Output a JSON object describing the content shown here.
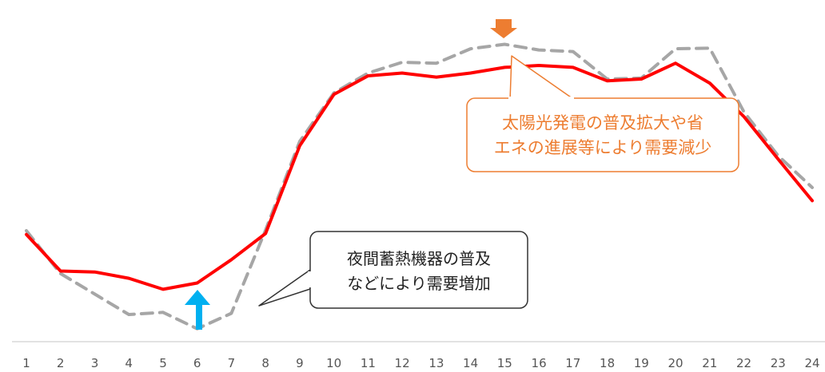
{
  "chart_data": {
    "type": "line",
    "title": "",
    "xlabel": "",
    "ylabel": "",
    "x": [
      1,
      2,
      3,
      4,
      5,
      6,
      7,
      8,
      9,
      10,
      11,
      12,
      13,
      14,
      15,
      16,
      17,
      18,
      19,
      20,
      21,
      22,
      23,
      24
    ],
    "ylim": [
      0,
      100
    ],
    "grid": false,
    "legend": "none",
    "series": [
      {
        "style": "solid",
        "color": "#ff0000",
        "values": [
          30.2,
          18.6,
          18.3,
          16.3,
          12.8,
          14.8,
          22.2,
          30.5,
          58.3,
          74.6,
          80.5,
          81.4,
          80.1,
          81.4,
          83.2,
          83.8,
          83.2,
          78.9,
          79.5,
          84.5,
          78.2,
          67.6,
          54.1,
          40.9
        ]
      },
      {
        "style": "dashed",
        "color": "#a6a6a6",
        "values": [
          31.4,
          17.8,
          11.3,
          4.8,
          5.5,
          0.3,
          5.2,
          31.6,
          59.7,
          75.1,
          81.4,
          84.8,
          84.5,
          89.1,
          90.5,
          88.7,
          88.2,
          79.5,
          79.8,
          89.1,
          89.3,
          69.1,
          55.2,
          45.1
        ]
      }
    ],
    "annotations": [
      {
        "text_lines": [
          "太陽光発電の普及拡大や省",
          "エネの進展等により需要減少"
        ],
        "points_to_x": 15,
        "arrow": "down",
        "arrow_color": "#ed7d31"
      },
      {
        "text_lines": [
          "夜間蓄熱機器の普及",
          "などにより需要増加"
        ],
        "points_to_x": 6,
        "arrow": "up",
        "arrow_color": "#00b0f0"
      }
    ]
  },
  "colors": {
    "orange_callout_border": "#ed7d31",
    "orange_callout_text": "#ed7d31",
    "dark_callout_border": "#333333",
    "dark_callout_text": "#222222",
    "axis_line": "#d9d9d9"
  }
}
